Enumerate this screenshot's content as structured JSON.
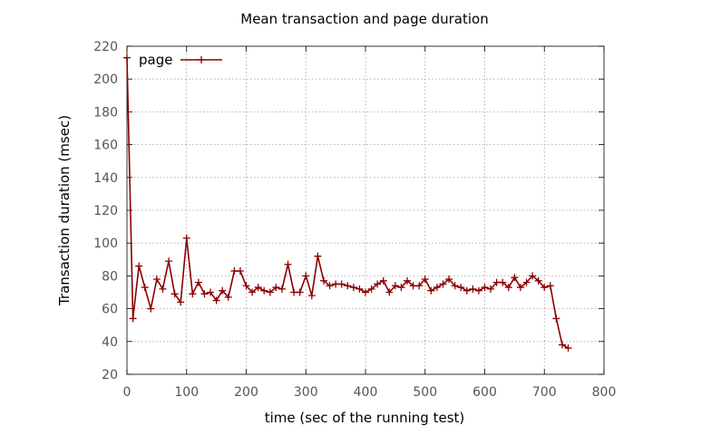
{
  "chart_data": {
    "type": "line",
    "title": "Mean transaction and page duration",
    "xlabel": "time (sec of the running test)",
    "ylabel": "Transaction duration (msec)",
    "xlim": [
      0,
      800
    ],
    "ylim": [
      20,
      220
    ],
    "xticks": [
      0,
      100,
      200,
      300,
      400,
      500,
      600,
      700,
      800
    ],
    "yticks": [
      20,
      40,
      60,
      80,
      100,
      120,
      140,
      160,
      180,
      200,
      220
    ],
    "grid": true,
    "legend_position": "top-left",
    "series_color": "#8b0000",
    "series": [
      {
        "name": "page",
        "x": [
          0,
          10,
          20,
          30,
          40,
          50,
          60,
          70,
          80,
          90,
          100,
          110,
          120,
          130,
          140,
          150,
          160,
          170,
          180,
          190,
          200,
          210,
          220,
          230,
          240,
          250,
          260,
          270,
          280,
          290,
          300,
          310,
          320,
          330,
          340,
          350,
          360,
          370,
          380,
          390,
          400,
          410,
          420,
          430,
          440,
          450,
          460,
          470,
          480,
          490,
          500,
          510,
          520,
          530,
          540,
          550,
          560,
          570,
          580,
          590,
          600,
          610,
          620,
          630,
          640,
          650,
          660,
          670,
          680,
          690,
          700,
          710,
          720,
          730,
          740
        ],
        "y": [
          213,
          54,
          86,
          73,
          60,
          78,
          72,
          89,
          69,
          64,
          103,
          69,
          76,
          69,
          70,
          65,
          71,
          67,
          83,
          83,
          74,
          70,
          73,
          71,
          70,
          73,
          72,
          87,
          70,
          70,
          80,
          68,
          92,
          77,
          74,
          75,
          75,
          74,
          73,
          72,
          70,
          72,
          75,
          77,
          70,
          74,
          73,
          77,
          74,
          74,
          78,
          71,
          73,
          75,
          78,
          74,
          73,
          71,
          72,
          71,
          73,
          72,
          76,
          76,
          73,
          79,
          73,
          76,
          80,
          77,
          73,
          74,
          54,
          38,
          36
        ]
      }
    ]
  }
}
